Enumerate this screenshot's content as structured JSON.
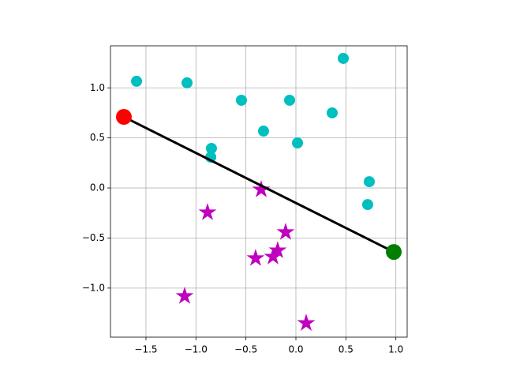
{
  "chart_data": {
    "type": "scatter",
    "xlim": [
      -1.855,
      1.113
    ],
    "ylim": [
      -1.49,
      1.42
    ],
    "xticks": [
      {
        "value": -1.5,
        "label": "−1.5"
      },
      {
        "value": -1.0,
        "label": "−1.0"
      },
      {
        "value": -0.5,
        "label": "−0.5"
      },
      {
        "value": 0.0,
        "label": "0.0"
      },
      0.5,
      {
        "value": 1.0,
        "label": "1.0"
      }
    ],
    "yticks": [
      {
        "value": -1.0,
        "label": "−1.0"
      },
      {
        "value": -0.5,
        "label": "−0.5"
      },
      {
        "value": 0.0,
        "label": "0.0"
      },
      0.5,
      {
        "value": 1.0,
        "label": "1.0"
      }
    ],
    "grid": true,
    "series": [
      {
        "color": "#00bfbf",
        "marker": "circle",
        "x": [
          -1.594,
          -1.089,
          -0.545,
          -0.063,
          0.474,
          -0.324,
          0.016,
          0.363,
          -0.845,
          -0.852,
          0.734,
          0.718
        ],
        "values": [
          1.066,
          1.05,
          0.876,
          0.876,
          1.294,
          0.568,
          0.45,
          0.75,
          0.395,
          0.308,
          0.063,
          -0.166
        ]
      },
      {
        "color": "#bf00bf",
        "marker": "star",
        "x": [
          -0.347,
          -0.884,
          -0.103,
          -0.182,
          -0.229,
          -0.403,
          -1.113,
          0.103
        ],
        "values": [
          -0.016,
          -0.245,
          -0.442,
          -0.624,
          -0.687,
          -0.702,
          -1.081,
          -1.35
        ]
      },
      {
        "color": "#000000",
        "marker": "line",
        "x": [
          -1.721,
          0.979
        ],
        "values": [
          0.71,
          -0.639
        ]
      },
      {
        "color": "#ff0000",
        "marker": "big-circle",
        "x": [
          -1.721
        ],
        "values": [
          0.71
        ]
      },
      {
        "color": "#008000",
        "marker": "big-circle",
        "x": [
          0.979
        ],
        "values": [
          -0.639
        ]
      }
    ]
  }
}
